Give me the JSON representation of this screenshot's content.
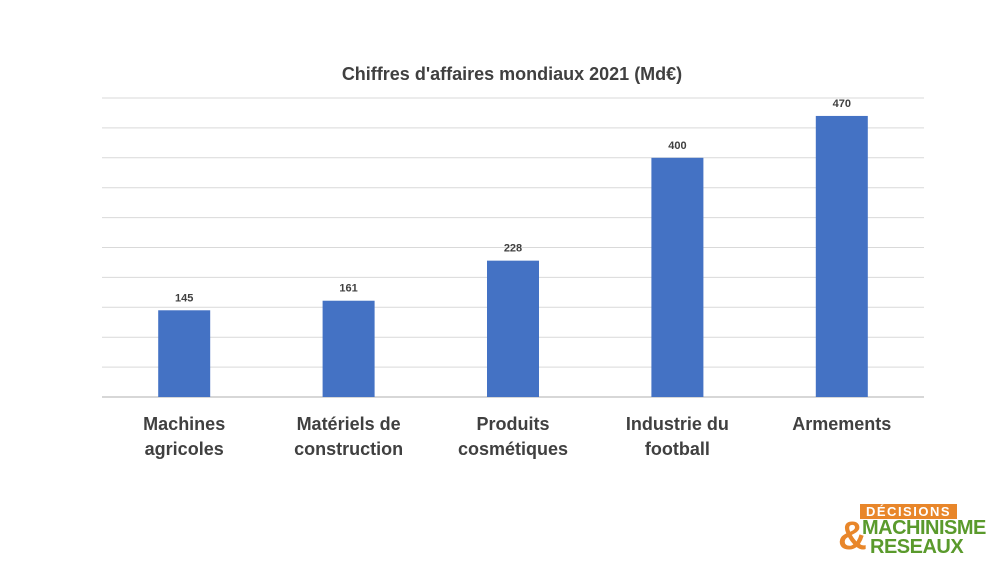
{
  "chart_data": {
    "type": "bar",
    "title": "Chiffres d'affaires mondiaux 2021 (Md€)",
    "categories": [
      [
        "Machines",
        "agricoles"
      ],
      [
        "Matériels de",
        "construction"
      ],
      [
        "Produits",
        "cosmétiques"
      ],
      [
        "Industrie du",
        "football"
      ],
      [
        "Armements"
      ]
    ],
    "values": [
      145,
      161,
      228,
      400,
      470
    ],
    "data_labels": [
      "145",
      "161",
      "228",
      "400",
      "470"
    ],
    "xlabel": "",
    "ylabel": "",
    "ylim": [
      0,
      500
    ],
    "grid": true,
    "gridline_step": 50,
    "bar_color": "#4472c4"
  },
  "logo": {
    "top_text": "DÉCISIONS",
    "ampersand": "&",
    "line1": "MACHINISME",
    "line2": "RESEAUX",
    "orange": "#e8862a",
    "green": "#5a9a2c"
  }
}
